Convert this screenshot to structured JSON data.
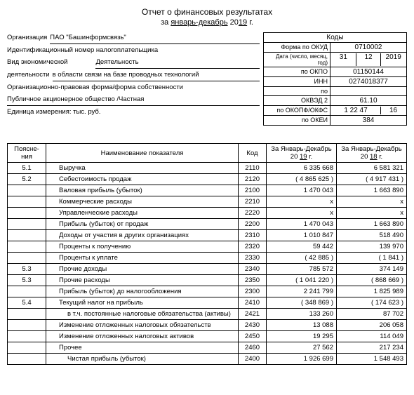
{
  "header": {
    "title": "Отчет о финансовых результатах",
    "period_prefix": "за",
    "period_months": "январь-декабрь",
    "period_year_prefix": "20",
    "period_year_suffix": "19",
    "period_g": "г."
  },
  "org": {
    "org_label": "Организация",
    "org_value": "ПАО \"Башинформсвязь\"",
    "inn_label": "Идентификационный номер налогоплательщика",
    "activity_label": "Вид экономической",
    "activity_label2": "деятельности",
    "activity_sub": "Деятельность",
    "activity_value": "в области связи на базе проводных технологий",
    "legal_label": "Организационно-правовая форма/форма собственности",
    "legal_value": "Публичное акционерное общество /Частная",
    "unit_label": "Единица измерения: тыс. руб."
  },
  "codes": {
    "header": "Коды",
    "okud_label": "Форма по ОКУД",
    "okud": "0710002",
    "date_label": "Дата (число, месяц, год)",
    "date_d": "31",
    "date_m": "12",
    "date_y": "2019",
    "okpo_label": "по ОКПО",
    "okpo": "01150144",
    "inn_label": "ИНН",
    "inn": "0274018377",
    "po_label": "по",
    "okved_label": "ОКВЭД 2",
    "okved": "61.10",
    "okopf_label": "по ОКОПФ/ОКФС",
    "okopf1": "1 22 47",
    "okopf2": "16",
    "okei_label": "по ОКЕИ",
    "okei": "384"
  },
  "table": {
    "head": {
      "notes": "Поясне-ния",
      "name": "Наименование показателя",
      "code": "Код",
      "cur_l1": "За Январь-Декабрь",
      "cur_l2a": "20",
      "cur_l2b": "19",
      "cur_l2c": "г.",
      "prev_l1": "За Январь-Декабрь",
      "prev_l2a": "20",
      "prev_l2b": "18",
      "prev_l2c": "г."
    },
    "rows": [
      {
        "notes": "5.1",
        "name": "Выручка",
        "code": "2110",
        "cur": "6 335 668",
        "prev": "6 581 321",
        "indent": 1
      },
      {
        "notes": "5.2",
        "name": "Себестоимость продаж",
        "code": "2120",
        "cur": "4 865 625",
        "prev": "4 917 431",
        "indent": 1,
        "paren": true
      },
      {
        "notes": "",
        "name": "Валовая прибыль (убыток)",
        "code": "2100",
        "cur": "1 470 043",
        "prev": "1 663 890",
        "indent": 1
      },
      {
        "notes": "",
        "name": "Коммерческие расходы",
        "code": "2210",
        "cur": "х",
        "prev": "х",
        "indent": 1
      },
      {
        "notes": "",
        "name": "Управленческие расходы",
        "code": "2220",
        "cur": "х",
        "prev": "х",
        "indent": 1
      },
      {
        "notes": "",
        "name": "Прибыль (убыток) от продаж",
        "code": "2200",
        "cur": "1 470 043",
        "prev": "1 663 890",
        "indent": 1
      },
      {
        "notes": "",
        "name": "Доходы от участия в других организациях",
        "code": "2310",
        "cur": "1 010 847",
        "prev": "518 490",
        "indent": 1
      },
      {
        "notes": "",
        "name": "Проценты к получению",
        "code": "2320",
        "cur": "59 442",
        "prev": "139 970",
        "indent": 1
      },
      {
        "notes": "",
        "name": "Проценты к уплате",
        "code": "2330",
        "cur": "42 885",
        "prev": "1 841",
        "indent": 1,
        "paren": true
      },
      {
        "notes": "5.3",
        "name": "Прочие доходы",
        "code": "2340",
        "cur": "785 572",
        "prev": "374 149",
        "indent": 1
      },
      {
        "notes": "5.3",
        "name": "Прочие расходы",
        "code": "2350",
        "cur": "1 041 220",
        "prev": "868 669",
        "indent": 1,
        "paren": true
      },
      {
        "notes": "",
        "name": "Прибыль (убыток) до налогообложения",
        "code": "2300",
        "cur": "2 241 799",
        "prev": "1 825 989",
        "indent": 1
      },
      {
        "notes": "5.4",
        "name": "Текущий налог на прибыль",
        "code": "2410",
        "cur": "348 869",
        "prev": "174 623",
        "indent": 1,
        "paren": true
      },
      {
        "notes": "",
        "name": "в т.ч. постоянные налоговые обязательства (активы)",
        "code": "2421",
        "cur": "133 260",
        "prev": "87 702",
        "indent": 2
      },
      {
        "notes": "",
        "name": "Изменение отложенных налоговых обязательств",
        "code": "2430",
        "cur": "13 088",
        "prev": "206 058",
        "indent": 1
      },
      {
        "notes": "",
        "name": "Изменение отложенных налоговых активов",
        "code": "2450",
        "cur": "19 295",
        "prev": "114 049",
        "indent": 1
      },
      {
        "notes": "",
        "name": "Прочее",
        "code": "2460",
        "cur": "27 562",
        "prev": "217 234",
        "indent": 1
      },
      {
        "notes": "",
        "name": "Чистая прибыль (убыток)",
        "code": "2400",
        "cur": "1 926 699",
        "prev": "1 548 493",
        "indent": 2
      }
    ]
  }
}
